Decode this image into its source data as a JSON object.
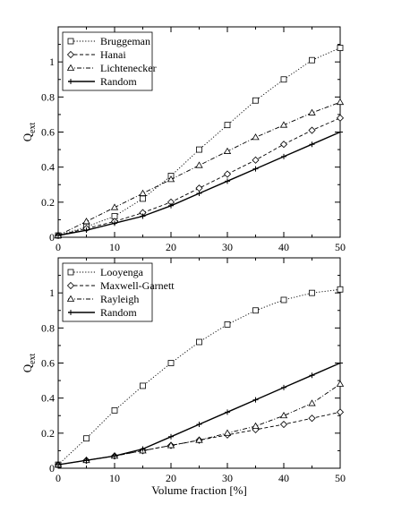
{
  "chart_data": [
    {
      "type": "line",
      "title": "",
      "xlabel": "",
      "ylabel_main": "Q",
      "ylabel_sub": "ext",
      "xlim": [
        0,
        50
      ],
      "ylim": [
        0,
        1.2
      ],
      "xticks": [
        0,
        10,
        20,
        30,
        40,
        50
      ],
      "yticks": [
        0,
        0.2,
        0.4,
        0.6,
        0.8,
        1
      ],
      "grid": false,
      "legend_position": "top-left",
      "x": [
        0,
        5,
        10,
        15,
        20,
        25,
        30,
        35,
        40,
        45,
        50
      ],
      "series": [
        {
          "name": "Bruggeman",
          "marker": "square",
          "dash": "dotted",
          "values": [
            0.01,
            0.06,
            0.12,
            0.22,
            0.35,
            0.5,
            0.64,
            0.78,
            0.9,
            1.01,
            1.08
          ]
        },
        {
          "name": "Hanai",
          "marker": "diamond",
          "dash": "dashed",
          "values": [
            0.01,
            0.05,
            0.09,
            0.14,
            0.2,
            0.28,
            0.36,
            0.44,
            0.53,
            0.61,
            0.68
          ]
        },
        {
          "name": "Lichtenecker",
          "marker": "triangle",
          "dash": "dashdot",
          "values": [
            0.01,
            0.09,
            0.17,
            0.25,
            0.33,
            0.41,
            0.49,
            0.57,
            0.64,
            0.71,
            0.77
          ]
        },
        {
          "name": "Random",
          "marker": "plus",
          "dash": "solid",
          "values": [
            0.01,
            0.04,
            0.08,
            0.12,
            0.18,
            0.25,
            0.32,
            0.39,
            0.46,
            0.53,
            0.6
          ]
        }
      ]
    },
    {
      "type": "line",
      "title": "",
      "xlabel": "Volume fraction [%]",
      "ylabel_main": "Q",
      "ylabel_sub": "ext",
      "xlim": [
        0,
        50
      ],
      "ylim": [
        0,
        1.2
      ],
      "xticks": [
        0,
        10,
        20,
        30,
        40,
        50
      ],
      "yticks": [
        0,
        0.2,
        0.4,
        0.6,
        0.8,
        1
      ],
      "grid": false,
      "legend_position": "top-left",
      "x": [
        0,
        5,
        10,
        15,
        20,
        25,
        30,
        35,
        40,
        45,
        50
      ],
      "series": [
        {
          "name": "Looyenga",
          "marker": "square",
          "dash": "dotted",
          "values": [
            0.02,
            0.17,
            0.33,
            0.47,
            0.6,
            0.72,
            0.82,
            0.9,
            0.96,
            1.0,
            1.02
          ]
        },
        {
          "name": "Maxwell-Garnett",
          "marker": "diamond",
          "dash": "dashed",
          "values": [
            0.02,
            0.045,
            0.07,
            0.1,
            0.13,
            0.16,
            0.19,
            0.22,
            0.25,
            0.285,
            0.32
          ]
        },
        {
          "name": "Rayleigh",
          "marker": "triangle",
          "dash": "dashdot",
          "values": [
            0.02,
            0.045,
            0.07,
            0.1,
            0.13,
            0.16,
            0.2,
            0.24,
            0.3,
            0.37,
            0.48
          ]
        },
        {
          "name": "Random",
          "marker": "plus",
          "dash": "solid",
          "values": [
            0.02,
            0.045,
            0.07,
            0.11,
            0.18,
            0.25,
            0.32,
            0.39,
            0.46,
            0.53,
            0.6
          ]
        }
      ]
    }
  ]
}
